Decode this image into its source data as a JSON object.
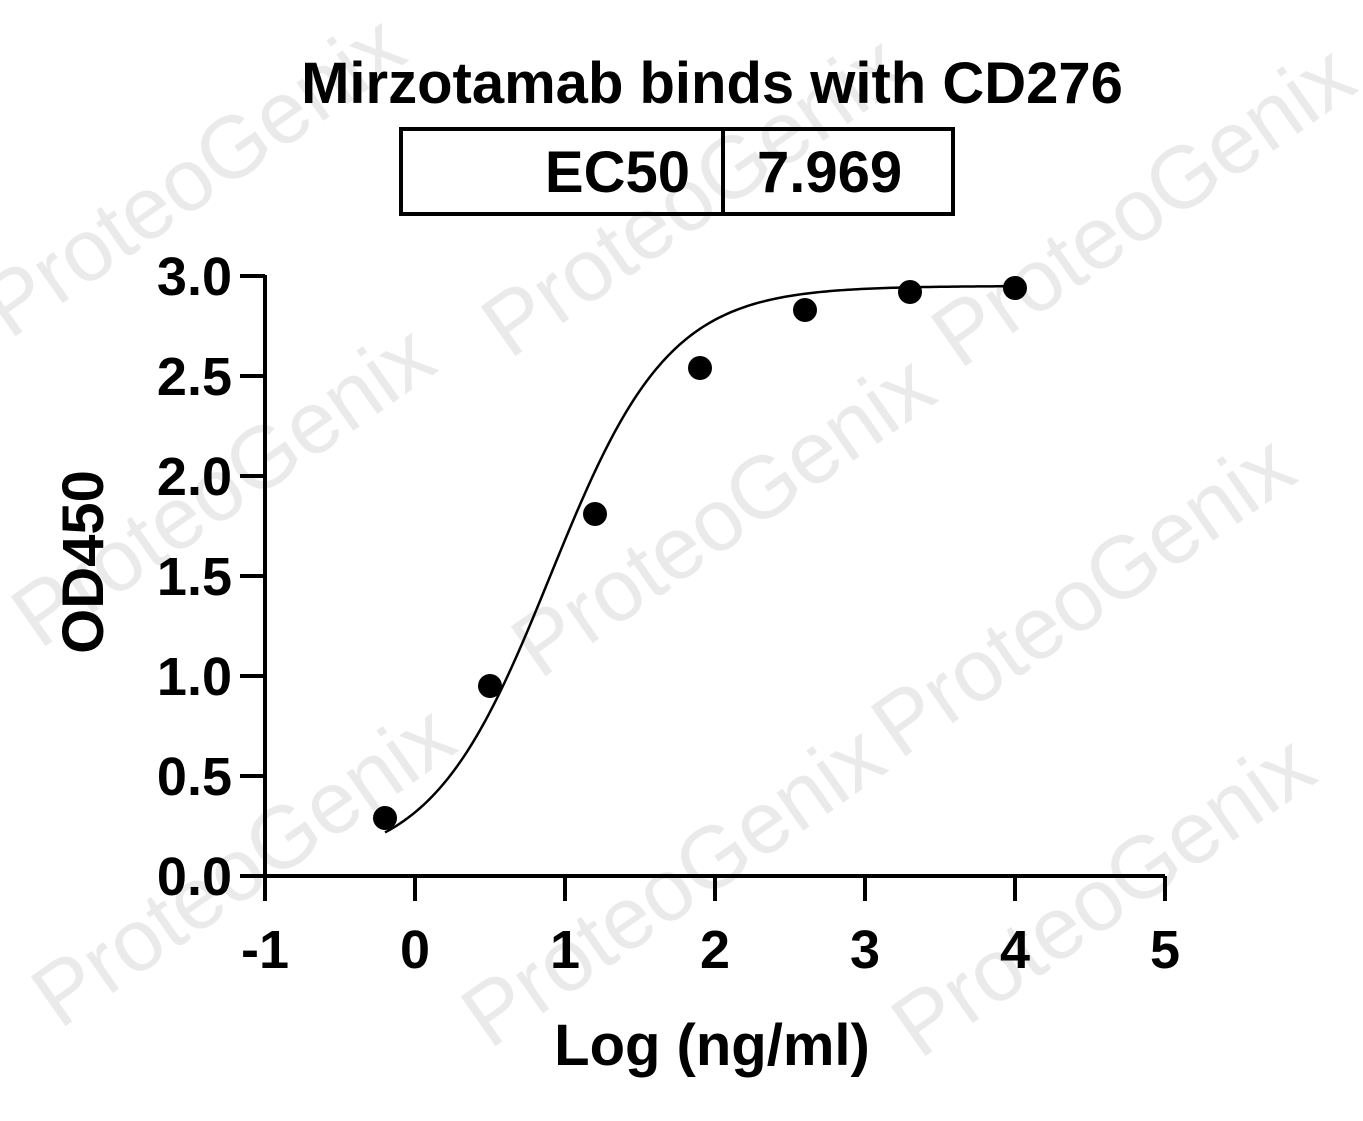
{
  "watermark": "ProteoGenix",
  "ec50_table": {
    "label": "EC50",
    "value": "7.969"
  },
  "chart_data": {
    "type": "scatter",
    "title": "Mirzotamab binds with CD276",
    "xlabel": "Log (ng/ml)",
    "ylabel": "OD450",
    "xlim": [
      -1,
      5
    ],
    "ylim": [
      0,
      3.0
    ],
    "xticks": [
      "-1",
      "0",
      "1",
      "2",
      "3",
      "4",
      "5"
    ],
    "yticks": [
      "0.0",
      "0.5",
      "1.0",
      "1.5",
      "2.0",
      "2.5",
      "3.0"
    ],
    "grid": false,
    "points": [
      {
        "x": -0.2,
        "y": 0.29
      },
      {
        "x": 0.5,
        "y": 0.95
      },
      {
        "x": 1.2,
        "y": 1.81
      },
      {
        "x": 1.9,
        "y": 2.54
      },
      {
        "x": 2.6,
        "y": 2.83
      },
      {
        "x": 3.3,
        "y": 2.92
      },
      {
        "x": 4.0,
        "y": 2.94
      }
    ],
    "fit": {
      "model": "4PL",
      "bottom": 0.05,
      "top": 2.95,
      "ec50_log": 0.9014,
      "hill": 1.1
    },
    "colors": {
      "points": "#000000",
      "line": "#000000",
      "watermark": "#d8d8d8"
    }
  }
}
